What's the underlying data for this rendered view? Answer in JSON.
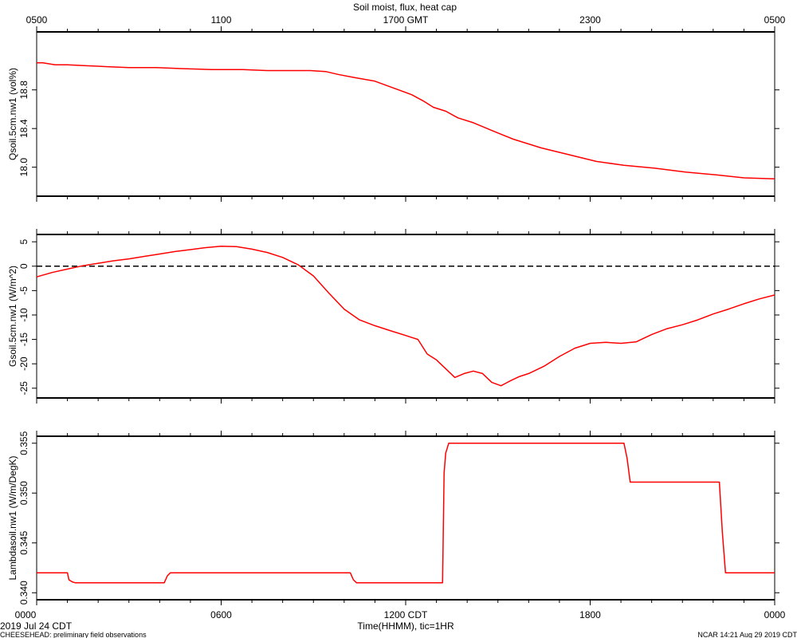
{
  "title": "Soil moist, flux, heat cap",
  "top_axis": {
    "label": "1700 GMT",
    "ticks": [
      "0500",
      "1100",
      "",
      "2300",
      "0500"
    ]
  },
  "bottom_axis": {
    "label": "Time(HHMM), tic=1HR",
    "ticks": [
      "0000",
      "0600",
      "1200 CDT",
      "1800",
      "0000"
    ]
  },
  "date_label": "2019 Jul 24 CDT",
  "footer_left": "CHEESEHEAD: preliminary field observations",
  "footer_right": "NCAR 14:21 Aug 29 2019 CDT",
  "line_color": "#ff0000",
  "chart_data": [
    {
      "type": "line",
      "ylabel": "Qsoil.5cm.nw1 (vol%)",
      "ylim": [
        17.7,
        19.4
      ],
      "yticks": [
        18.0,
        18.4,
        18.8
      ],
      "ytick_labels": [
        "18.0",
        "18.4",
        "18.8"
      ],
      "xlim": [
        0,
        24
      ],
      "x": [
        0,
        0.2,
        0.6,
        1.0,
        1.6,
        2.3,
        3.0,
        3.9,
        4.7,
        5.7,
        6.7,
        7.5,
        8.2,
        8.9,
        9.4,
        9.8,
        10.3,
        11.0,
        11.6,
        12.2,
        12.6,
        12.9,
        13.3,
        13.7,
        14.2,
        14.8,
        15.5,
        16.4,
        17.3,
        18.2,
        19.1,
        20.1,
        21.1,
        22.1,
        23.0,
        24.0
      ],
      "y": [
        19.08,
        19.08,
        19.06,
        19.06,
        19.05,
        19.04,
        19.03,
        19.03,
        19.02,
        19.01,
        19.01,
        19.0,
        19.0,
        19.0,
        18.99,
        18.96,
        18.93,
        18.89,
        18.82,
        18.75,
        18.68,
        18.62,
        18.58,
        18.51,
        18.46,
        18.38,
        18.29,
        18.2,
        18.13,
        18.06,
        18.02,
        17.99,
        17.95,
        17.92,
        17.89,
        17.88
      ]
    },
    {
      "type": "line",
      "ylabel": "Gsoil.5cm.nw1 (W/m^2)",
      "ylim": [
        -27,
        6.5
      ],
      "yticks": [
        5,
        0,
        -5,
        -10,
        -15,
        -20,
        -25
      ],
      "ytick_labels": [
        "5",
        "0",
        "-5",
        "-10",
        "-15",
        "-20",
        "-25"
      ],
      "reference_line": 0,
      "xlim": [
        0,
        24
      ],
      "x": [
        0,
        0.5,
        1.0,
        1.5,
        2.0,
        2.5,
        3.0,
        3.5,
        4.0,
        4.5,
        5.0,
        5.5,
        6.0,
        6.5,
        7.0,
        7.5,
        8.0,
        8.5,
        9.0,
        9.5,
        10.0,
        10.5,
        11.0,
        11.5,
        12.0,
        12.4,
        12.7,
        13.0,
        13.3,
        13.6,
        13.9,
        14.2,
        14.5,
        14.8,
        15.1,
        15.4,
        15.7,
        16.0,
        16.5,
        17.0,
        17.5,
        18.0,
        18.5,
        19.0,
        19.5,
        20.0,
        20.5,
        21.0,
        21.5,
        22.0,
        22.5,
        23.0,
        23.5,
        24.0
      ],
      "y": [
        -2.2,
        -1.3,
        -0.6,
        0.1,
        0.6,
        1.1,
        1.5,
        2.0,
        2.5,
        3.0,
        3.4,
        3.8,
        4.1,
        4.0,
        3.5,
        2.8,
        1.8,
        0.3,
        -2.0,
        -5.5,
        -8.8,
        -11.0,
        -12.2,
        -13.2,
        -14.2,
        -15.0,
        -18.0,
        -19.2,
        -21.0,
        -22.8,
        -22.0,
        -21.5,
        -22.0,
        -23.8,
        -24.5,
        -23.5,
        -22.6,
        -22.0,
        -20.5,
        -18.5,
        -16.8,
        -15.8,
        -15.6,
        -15.8,
        -15.5,
        -14.0,
        -12.8,
        -12.0,
        -11.0,
        -9.8,
        -8.8,
        -7.7,
        -6.7,
        -5.9
      ]
    },
    {
      "type": "line",
      "ylabel": "Lambdasoil.nw1 (W/m/DegK)",
      "ylim": [
        0.3393,
        0.3557
      ],
      "yticks": [
        0.34,
        0.345,
        0.35,
        0.355
      ],
      "ytick_labels": [
        "0.340",
        "0.345",
        "0.350",
        "0.355"
      ],
      "xlim": [
        0,
        24
      ],
      "x": [
        0,
        1.0,
        1.05,
        1.15,
        1.25,
        4.15,
        4.25,
        4.35,
        10.2,
        10.3,
        10.4,
        13.2,
        13.25,
        13.3,
        13.4,
        19.1,
        19.2,
        19.3,
        22.2,
        22.3,
        22.4,
        24.0
      ],
      "y": [
        0.342,
        0.342,
        0.3413,
        0.3411,
        0.341,
        0.341,
        0.3417,
        0.342,
        0.342,
        0.3413,
        0.341,
        0.341,
        0.352,
        0.354,
        0.355,
        0.355,
        0.3535,
        0.3511,
        0.3511,
        0.346,
        0.342,
        0.342
      ]
    }
  ]
}
